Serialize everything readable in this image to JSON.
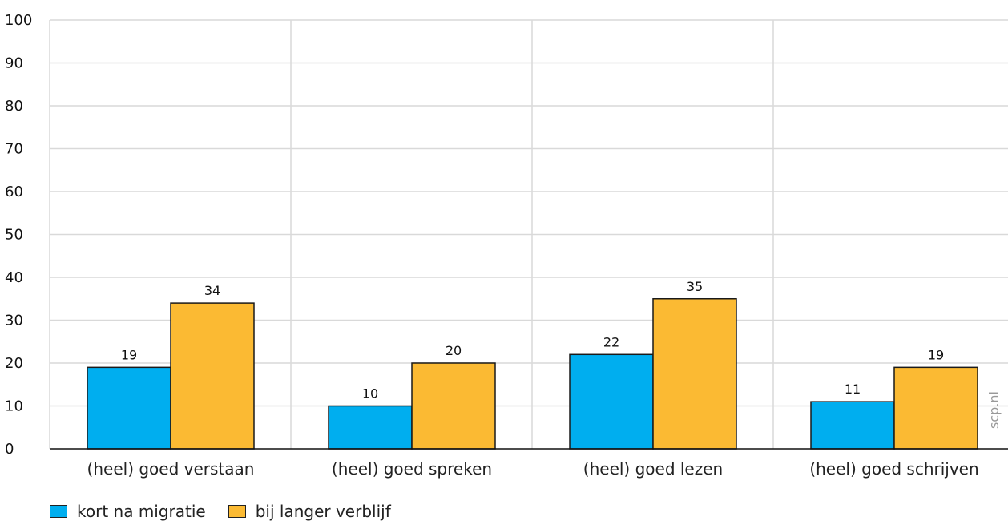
{
  "chart_data": {
    "type": "bar",
    "categories": [
      "(heel) goed verstaan",
      "(heel) goed spreken",
      "(heel) goed lezen",
      "(heel) goed schrijven"
    ],
    "series": [
      {
        "name": "kort na migratie",
        "values": [
          19,
          10,
          22,
          11
        ],
        "color": "#00aeef"
      },
      {
        "name": "bij langer verblijf",
        "values": [
          34,
          20,
          35,
          19
        ],
        "color": "#fbba33"
      }
    ],
    "ylim": [
      0,
      100
    ],
    "yticks": [
      0,
      10,
      20,
      30,
      40,
      50,
      60,
      70,
      80,
      90,
      100
    ],
    "grid": true,
    "legend_position": "bottom-left",
    "source": "scp.nl"
  }
}
